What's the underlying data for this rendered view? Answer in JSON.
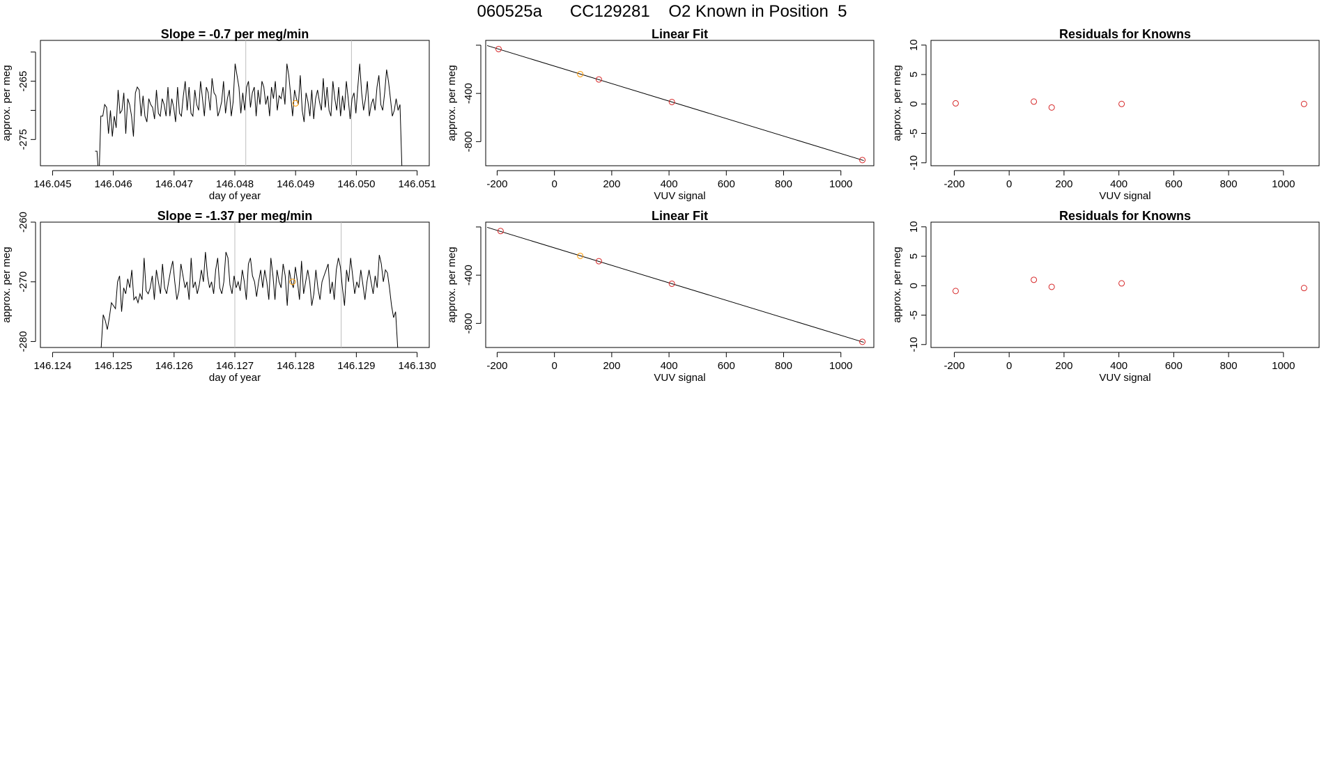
{
  "figure": {
    "title": "060525a      CC129281    O2 Known in Position  5"
  },
  "chart_data": [
    {
      "type": "line",
      "title": "Slope =  -0.7  per meg/min",
      "xlabel": "day of year",
      "ylabel": "approx. per meg",
      "xlim": [
        146.0448,
        146.0512
      ],
      "ylim": [
        -279.5,
        -258
      ],
      "xticks": [
        "146.045",
        "146.046",
        "146.047",
        "146.048",
        "146.049",
        "146.050",
        "146.051"
      ],
      "xtick_values": [
        146.045,
        146.046,
        146.047,
        146.048,
        146.049,
        146.05,
        146.051
      ],
      "yticks": [
        "-275",
        "-265"
      ],
      "ytick_values": [
        -275,
        -265
      ],
      "ytick_minor": [
        -280,
        -270,
        -260
      ],
      "vlines": [
        146.04818,
        146.04992
      ],
      "highlight_point": {
        "x": 146.049,
        "y": -268.8
      },
      "series": [
        {
          "name": "trace",
          "x_start": 146.0457,
          "x_end": 146.05075,
          "values": [
            -277.0,
            -277.0,
            -282.0,
            -271.0,
            -271.0,
            -269.0,
            -269.5,
            -274.0,
            -270.0,
            -274.5,
            -271.0,
            -273.0,
            -266.5,
            -270.5,
            -270.0,
            -267.0,
            -274.0,
            -268.0,
            -269.0,
            -271.0,
            -274.5,
            -267.0,
            -266.0,
            -266.5,
            -271.0,
            -267.5,
            -271.0,
            -272.0,
            -268.0,
            -269.0,
            -269.5,
            -271.5,
            -266.5,
            -270.5,
            -271.0,
            -268.0,
            -269.0,
            -271.0,
            -266.0,
            -271.0,
            -268.0,
            -269.5,
            -272.0,
            -266.0,
            -270.5,
            -271.0,
            -267.5,
            -265.0,
            -270.0,
            -266.0,
            -270.5,
            -271.0,
            -266.5,
            -269.0,
            -270.0,
            -265.0,
            -268.0,
            -271.0,
            -266.0,
            -267.0,
            -270.0,
            -264.5,
            -267.0,
            -267.5,
            -271.0,
            -270.0,
            -268.5,
            -265.0,
            -270.5,
            -268.0,
            -266.5,
            -271.0,
            -268.5,
            -262.0,
            -264.0,
            -266.0,
            -270.5,
            -267.0,
            -270.0,
            -266.0,
            -265.0,
            -269.5,
            -267.0,
            -266.0,
            -271.0,
            -266.5,
            -269.0,
            -265.0,
            -266.0,
            -269.0,
            -267.5,
            -271.0,
            -266.0,
            -268.0,
            -265.0,
            -270.0,
            -267.5,
            -268.0,
            -266.0,
            -269.0,
            -262.0,
            -264.0,
            -267.5,
            -271.0,
            -266.5,
            -268.0,
            -269.0,
            -264.0,
            -270.0,
            -272.0,
            -267.0,
            -268.5,
            -271.0,
            -266.5,
            -271.5,
            -268.0,
            -266.5,
            -268.5,
            -270.0,
            -264.5,
            -269.5,
            -266.0,
            -270.0,
            -271.0,
            -265.0,
            -268.0,
            -270.0,
            -266.0,
            -271.0,
            -267.5,
            -270.0,
            -265.0,
            -268.0,
            -271.5,
            -268.0,
            -267.0,
            -270.5,
            -266.0,
            -262.0,
            -267.0,
            -270.0,
            -268.0,
            -265.0,
            -271.0,
            -269.0,
            -268.0,
            -270.0,
            -266.0,
            -264.0,
            -269.0,
            -270.0,
            -267.0,
            -263.0,
            -265.0,
            -268.0,
            -271.0,
            -270.0,
            -268.0,
            -270.0,
            -269.0,
            -280.0
          ]
        }
      ]
    },
    {
      "type": "scatter",
      "title": "Linear Fit",
      "xlabel": "VUV signal",
      "ylabel": "approx. per meg",
      "xlim": [
        -240,
        1115
      ],
      "ylim": [
        -1000,
        40
      ],
      "xticks": [
        "-200",
        "0",
        "200",
        "400",
        "600",
        "800",
        "1000"
      ],
      "xtick_values": [
        -200,
        0,
        200,
        400,
        600,
        800,
        1000
      ],
      "yticks": [
        "-800",
        "-400"
      ],
      "ytick_values": [
        -800,
        -400
      ],
      "ytick_minor": [
        0
      ],
      "fit_line": {
        "x": [
          -235,
          1080
        ],
        "y": [
          -3,
          -957
        ]
      },
      "points": [
        {
          "x": -195,
          "y": -32,
          "color": "#d62728"
        },
        {
          "x": 90,
          "y": -240,
          "color": "#ff9900"
        },
        {
          "x": 155,
          "y": -284,
          "color": "#d62728"
        },
        {
          "x": 410,
          "y": -471,
          "color": "#d62728"
        },
        {
          "x": 1075,
          "y": -953,
          "color": "#d62728"
        }
      ]
    },
    {
      "type": "scatter",
      "title": "Residuals for Knowns",
      "xlabel": "VUV signal",
      "ylabel": "approx. per meg",
      "xlim": [
        -285,
        1130
      ],
      "ylim": [
        -10.5,
        10.8
      ],
      "xticks": [
        "-200",
        "0",
        "200",
        "400",
        "600",
        "800",
        "1000"
      ],
      "xtick_values": [
        -200,
        0,
        200,
        400,
        600,
        800,
        1000
      ],
      "yticks": [
        "-10",
        "-5",
        "0",
        "5",
        "10"
      ],
      "ytick_values": [
        -10,
        -5,
        0,
        5,
        10
      ],
      "points": [
        {
          "x": -195,
          "y": 0.1,
          "color": "#d62728"
        },
        {
          "x": 90,
          "y": 0.4,
          "color": "#d62728"
        },
        {
          "x": 155,
          "y": -0.6,
          "color": "#d62728"
        },
        {
          "x": 410,
          "y": 0.0,
          "color": "#d62728"
        },
        {
          "x": 1075,
          "y": 0.0,
          "color": "#d62728"
        }
      ]
    },
    {
      "type": "line",
      "title": "Slope =  -1.37  per meg/min",
      "xlabel": "day of year",
      "ylabel": "approx. per meg",
      "xlim": [
        146.1238,
        146.1302
      ],
      "ylim": [
        -281,
        -260
      ],
      "xticks": [
        "146.124",
        "146.125",
        "146.126",
        "146.127",
        "146.128",
        "146.129",
        "146.130"
      ],
      "xtick_values": [
        146.124,
        146.125,
        146.126,
        146.127,
        146.128,
        146.129,
        146.13
      ],
      "yticks": [
        "-280",
        "-270",
        "-260"
      ],
      "ytick_values": [
        -280,
        -270,
        -260
      ],
      "vlines": [
        146.127,
        146.12875
      ],
      "highlight_point": {
        "x": 146.12795,
        "y": -270.0
      },
      "series": [
        {
          "name": "trace",
          "x_start": 146.1248,
          "x_end": 146.12968,
          "values": [
            -281.0,
            -275.5,
            -276.5,
            -278.0,
            -276.0,
            -273.5,
            -274.0,
            -274.5,
            -270.0,
            -269.0,
            -275.0,
            -271.0,
            -272.0,
            -269.5,
            -271.0,
            -268.0,
            -273.0,
            -272.5,
            -273.5,
            -272.0,
            -273.0,
            -266.0,
            -271.5,
            -272.0,
            -271.0,
            -269.0,
            -273.0,
            -268.0,
            -270.0,
            -272.0,
            -267.0,
            -271.0,
            -272.0,
            -270.0,
            -268.0,
            -266.5,
            -270.0,
            -273.0,
            -271.5,
            -267.0,
            -269.0,
            -271.0,
            -270.0,
            -273.0,
            -266.0,
            -271.0,
            -270.0,
            -272.0,
            -270.5,
            -268.0,
            -270.0,
            -265.0,
            -269.0,
            -271.0,
            -270.0,
            -272.0,
            -268.0,
            -266.0,
            -271.0,
            -272.0,
            -270.0,
            -265.0,
            -266.0,
            -270.5,
            -272.0,
            -269.0,
            -271.0,
            -270.0,
            -271.5,
            -268.0,
            -270.0,
            -273.0,
            -267.0,
            -266.0,
            -269.0,
            -270.0,
            -272.5,
            -270.0,
            -268.0,
            -271.0,
            -268.0,
            -270.0,
            -273.0,
            -266.0,
            -269.0,
            -273.0,
            -268.0,
            -270.0,
            -271.0,
            -267.0,
            -269.0,
            -274.0,
            -268.0,
            -270.0,
            -271.0,
            -267.5,
            -270.0,
            -273.0,
            -266.5,
            -272.0,
            -270.0,
            -268.0,
            -270.0,
            -274.0,
            -272.0,
            -268.0,
            -271.0,
            -273.0,
            -270.0,
            -269.0,
            -268.0,
            -267.0,
            -272.0,
            -270.0,
            -273.0,
            -268.0,
            -266.0,
            -267.5,
            -271.0,
            -274.0,
            -268.0,
            -270.0,
            -266.0,
            -269.0,
            -272.0,
            -270.0,
            -271.0,
            -268.0,
            -270.5,
            -273.0,
            -270.0,
            -268.0,
            -270.0,
            -272.0,
            -269.0,
            -271.0,
            -265.5,
            -267.0,
            -270.0,
            -268.0,
            -268.5,
            -271.0,
            -274.0,
            -276.0,
            -275.0,
            -281.0
          ]
        }
      ]
    },
    {
      "type": "scatter",
      "title": "Linear Fit",
      "xlabel": "VUV signal",
      "ylabel": "approx. per meg",
      "xlim": [
        -240,
        1115
      ],
      "ylim": [
        -1000,
        40
      ],
      "xticks": [
        "-200",
        "0",
        "200",
        "400",
        "600",
        "800",
        "1000"
      ],
      "xtick_values": [
        -200,
        0,
        200,
        400,
        600,
        800,
        1000
      ],
      "yticks": [
        "-800",
        "-400"
      ],
      "ytick_values": [
        -800,
        -400
      ],
      "ytick_minor": [
        0
      ],
      "fit_line": {
        "x": [
          -235,
          1080
        ],
        "y": [
          -3,
          -957
        ]
      },
      "points": [
        {
          "x": -188,
          "y": -34,
          "color": "#d62728"
        },
        {
          "x": 90,
          "y": -240,
          "color": "#ff9900"
        },
        {
          "x": 155,
          "y": -284,
          "color": "#d62728"
        },
        {
          "x": 410,
          "y": -471,
          "color": "#d62728"
        },
        {
          "x": 1075,
          "y": -953,
          "color": "#d62728"
        }
      ]
    },
    {
      "type": "scatter",
      "title": "Residuals for Knowns",
      "xlabel": "VUV signal",
      "ylabel": "approx. per meg",
      "xlim": [
        -285,
        1130
      ],
      "ylim": [
        -10.5,
        10.8
      ],
      "xticks": [
        "-200",
        "0",
        "200",
        "400",
        "600",
        "800",
        "1000"
      ],
      "xtick_values": [
        -200,
        0,
        200,
        400,
        600,
        800,
        1000
      ],
      "yticks": [
        "-10",
        "-5",
        "0",
        "5",
        "10"
      ],
      "ytick_values": [
        -10,
        -5,
        0,
        5,
        10
      ],
      "points": [
        {
          "x": -195,
          "y": -0.9,
          "color": "#d62728"
        },
        {
          "x": 90,
          "y": 1.0,
          "color": "#d62728"
        },
        {
          "x": 155,
          "y": -0.2,
          "color": "#d62728"
        },
        {
          "x": 410,
          "y": 0.4,
          "color": "#d62728"
        },
        {
          "x": 1075,
          "y": -0.4,
          "color": "#d62728"
        }
      ]
    }
  ]
}
